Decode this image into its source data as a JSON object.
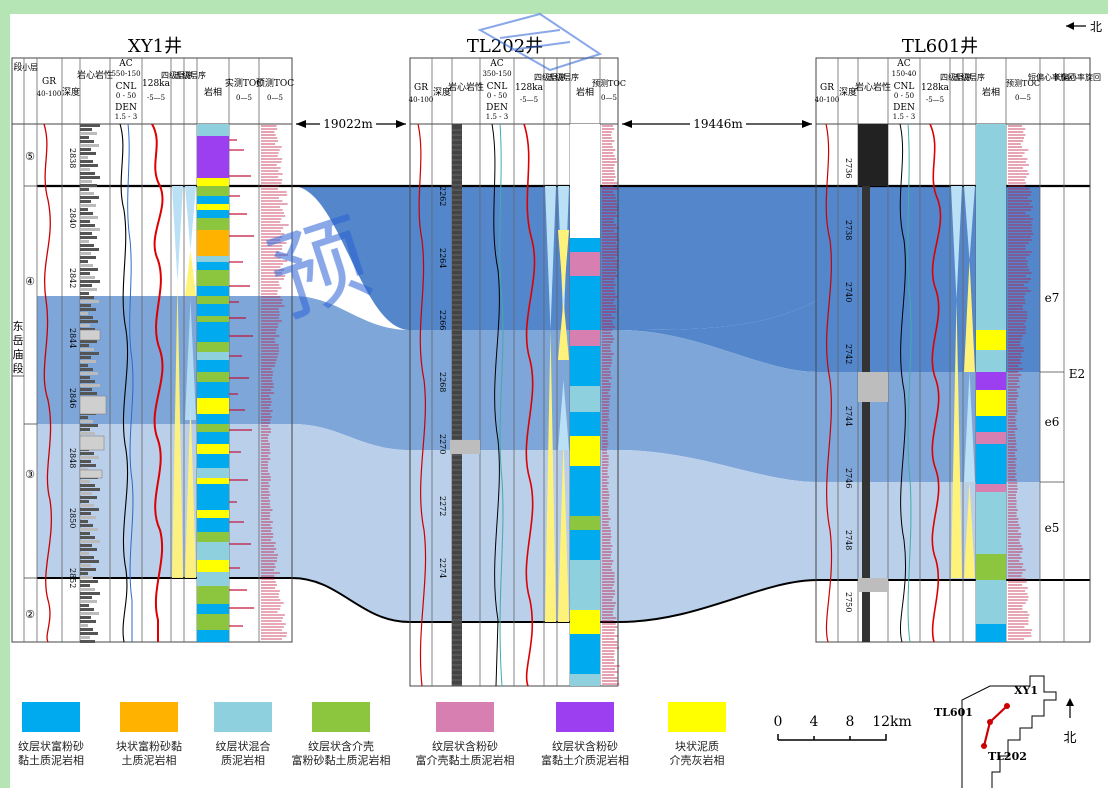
{
  "wells": [
    {
      "name": "XY1井",
      "depth_ticks": [
        "2838",
        "2840",
        "2842",
        "2844",
        "2846",
        "2848",
        "2850",
        "2852"
      ]
    },
    {
      "name": "TL202井",
      "depth_ticks": [
        "2262",
        "2264",
        "2266",
        "2268",
        "2270",
        "2272",
        "2274"
      ]
    },
    {
      "name": "TL601井",
      "depth_ticks": [
        "2736",
        "2738",
        "2740",
        "2742",
        "2744",
        "2746",
        "2748",
        "2750"
      ]
    }
  ],
  "headers": {
    "xy1": {
      "seg": "段",
      "small": "小层",
      "gr": "GR",
      "gr_range": "40-100",
      "depth": "深度",
      "core": "岩心岩性",
      "ac": "AC",
      "ac_range": "550-150",
      "cnl": "CNL",
      "cnl_range": "0 - 50",
      "den": "DEN",
      "den_range": "1.5 - 3",
      "ka": "128ka",
      "ka_range": "-5—5",
      "seq4": "四级层序",
      "seq5": "五级层序",
      "facies": "岩相",
      "toc_meas": "实测TOC",
      "toc_meas_range": "0—5",
      "toc_pred": "预测TOC",
      "toc_pred_range": "0—5"
    },
    "tl202": {
      "gr": "GR",
      "gr_range": "40-100",
      "depth": "深度",
      "core": "岩心岩性",
      "ac": "AC",
      "ac_range": "350-150",
      "cnl": "CNL",
      "cnl_range": "0 - 50",
      "den": "DEN",
      "den_range": "1.5 - 3",
      "ka": "128ka",
      "ka_range": "-5—5",
      "seq4": "四级层序",
      "seq5": "五级层序",
      "facies": "岩相",
      "toc_pred": "预测TOC",
      "toc_pred_range": "0—5"
    },
    "tl601": {
      "gr": "GR",
      "gr_range": "40-100",
      "depth": "深度",
      "core": "岩心岩性",
      "ac": "AC",
      "ac_range": "150-40",
      "cnl": "CNL",
      "cnl_range": "0 - 50",
      "den": "DEN",
      "den_range": "1.5 - 3",
      "ka": "128ka",
      "ka_range": "-5—5",
      "seq4": "四级层序",
      "seq5": "五级层序",
      "facies": "岩相",
      "toc_pred": "预测TOC",
      "toc_pred_range": "0—5",
      "short": "短偏心率旋回",
      "long": "长偏心率旋回"
    }
  },
  "distances": {
    "xy1_tl202": "19022m",
    "tl202_tl601": "19446m"
  },
  "north_label": "北",
  "sublayers": [
    "⑤",
    "④",
    "③",
    "②"
  ],
  "segment_name": "东岳庙段",
  "cycles": {
    "e7": "e7",
    "e6": "e6",
    "e5": "e5",
    "E2": "E2"
  },
  "watermark": "预",
  "legend": [
    {
      "color": "#00aaee",
      "line1": "纹层状富粉砂",
      "line2": "黏土质泥岩相"
    },
    {
      "color": "#ffb300",
      "line1": "块状富粉砂黏",
      "line2": "土质泥岩相"
    },
    {
      "color": "#8fd0de",
      "line1": "纹层状混合",
      "line2": "质泥岩相"
    },
    {
      "color": "#8cc63f",
      "line1": "纹层状含介壳",
      "line2": "富粉砂黏土质泥岩相"
    },
    {
      "color": "#d67fb0",
      "line1": "纹层状含粉砂",
      "line2": "富介壳黏土质泥岩相"
    },
    {
      "color": "#9b3ff0",
      "line1": "纹层状含粉砂",
      "line2": "富黏土介质泥岩相"
    },
    {
      "color": "#ffff00",
      "line1": "块状泥质",
      "line2": "介壳灰岩相"
    }
  ],
  "scale": {
    "labels": [
      "0",
      "4",
      "8",
      "12km"
    ]
  },
  "map": {
    "wells": [
      "XY1",
      "TL601",
      "TL202"
    ],
    "north": "北"
  }
}
